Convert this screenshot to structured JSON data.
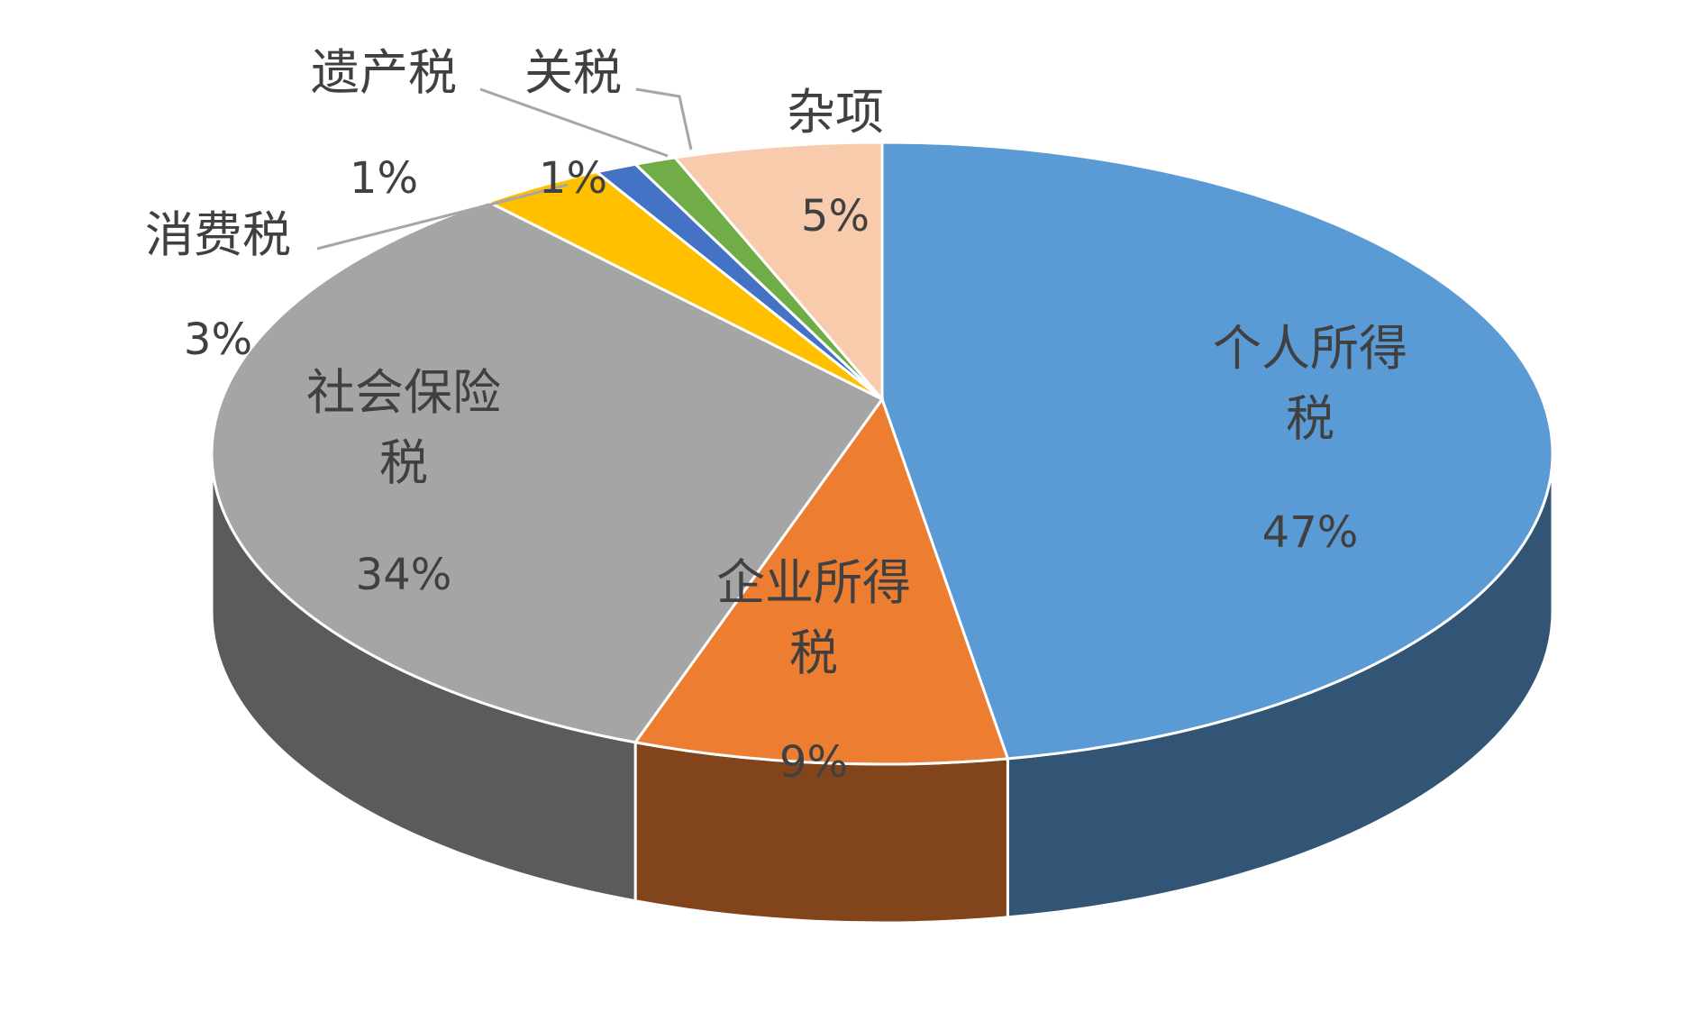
{
  "chart_data": {
    "type": "pie",
    "categories": [
      "个人所得税",
      "企业所得税",
      "社会保险税",
      "消费税",
      "遗产税",
      "关税",
      "杂项"
    ],
    "values": [
      47,
      9,
      34,
      3,
      1,
      1,
      5
    ],
    "value_labels": [
      "47%",
      "9%",
      "34%",
      "3%",
      "1%",
      "1%",
      "5%"
    ],
    "colors": [
      "#5b9bd5",
      "#ed7d31",
      "#a5a5a5",
      "#ffc000",
      "#4472c4",
      "#70ad47",
      "#f8cbad"
    ]
  }
}
